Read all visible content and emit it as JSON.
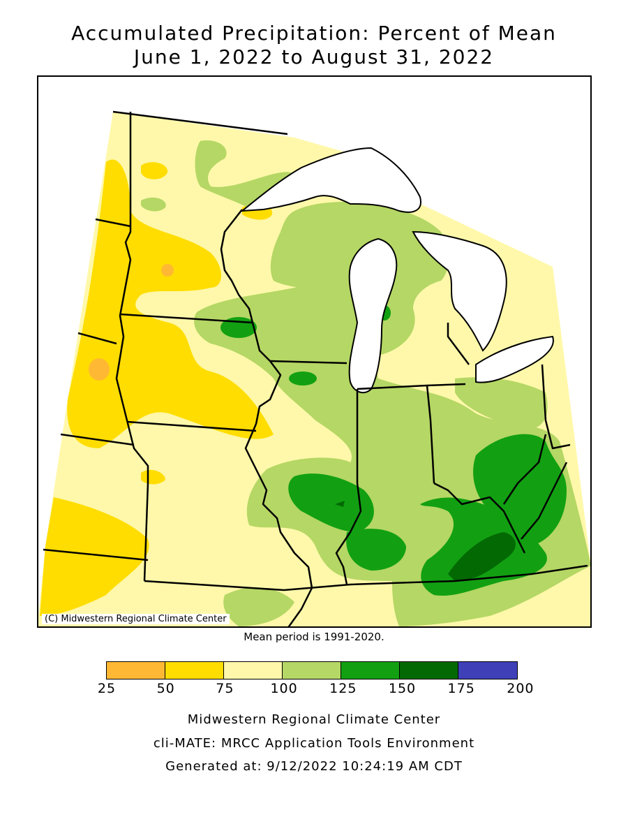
{
  "title": {
    "line1": "Accumulated Precipitation: Percent of Mean",
    "line2": "June 1, 2022 to August 31, 2022"
  },
  "map": {
    "copyright": "(C) Midwestern Regional Climate Center",
    "mean_period": "Mean period is 1991-2020."
  },
  "legend": {
    "bins": [
      {
        "from": 25,
        "to": 50,
        "color": "#FFB833"
      },
      {
        "from": 50,
        "to": 75,
        "color": "#FFDD00"
      },
      {
        "from": 75,
        "to": 100,
        "color": "#FFF8AA"
      },
      {
        "from": 100,
        "to": 125,
        "color": "#B5D765"
      },
      {
        "from": 125,
        "to": 150,
        "color": "#12A012"
      },
      {
        "from": 150,
        "to": 175,
        "color": "#036903"
      },
      {
        "from": 175,
        "to": 200,
        "color": "#3F3FB8"
      }
    ],
    "ticks": [
      "25",
      "50",
      "75",
      "100",
      "125",
      "150",
      "175",
      "200"
    ]
  },
  "footer": {
    "line1": "Midwestern Regional Climate Center",
    "line2": "cli-MATE: MRCC Application Tools Environment",
    "line3": "Generated at: 9/12/2022 10:24:19 AM CDT"
  }
}
